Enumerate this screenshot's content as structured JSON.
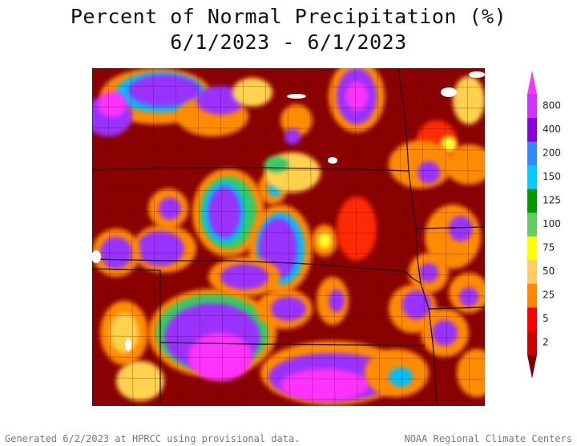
{
  "title_line1": "Percent of Normal Precipitation (%)",
  "title_line2": "6/1/2023 - 6/1/2023",
  "legend": {
    "labels": [
      "800",
      "400",
      "200",
      "150",
      "125",
      "100",
      "75",
      "50",
      "25",
      "5",
      "2"
    ],
    "colors": [
      "#ff33ff",
      "#cc33ff",
      "#8800dd",
      "#3388ff",
      "#00ccff",
      "#009900",
      "#66cc66",
      "#ffff00",
      "#ffcc66",
      "#ff8800",
      "#ff0000",
      "#cc0000",
      "#7a0000"
    ]
  },
  "map_palette": {
    "very_dry": "#8b0000",
    "dry": "#cc0000",
    "below": "#ff2a00",
    "low": "#ff8c00",
    "near": "#ffd24d",
    "normal": "#ffff33",
    "wet": "#33cc66",
    "wetter": "#00bfff",
    "very_wet": "#9933ff",
    "extreme": "#ff33ff"
  },
  "footer_left": "Generated 6/2/2023 at HPRCC using provisional data.",
  "footer_right": "NOAA Regional Climate Centers"
}
